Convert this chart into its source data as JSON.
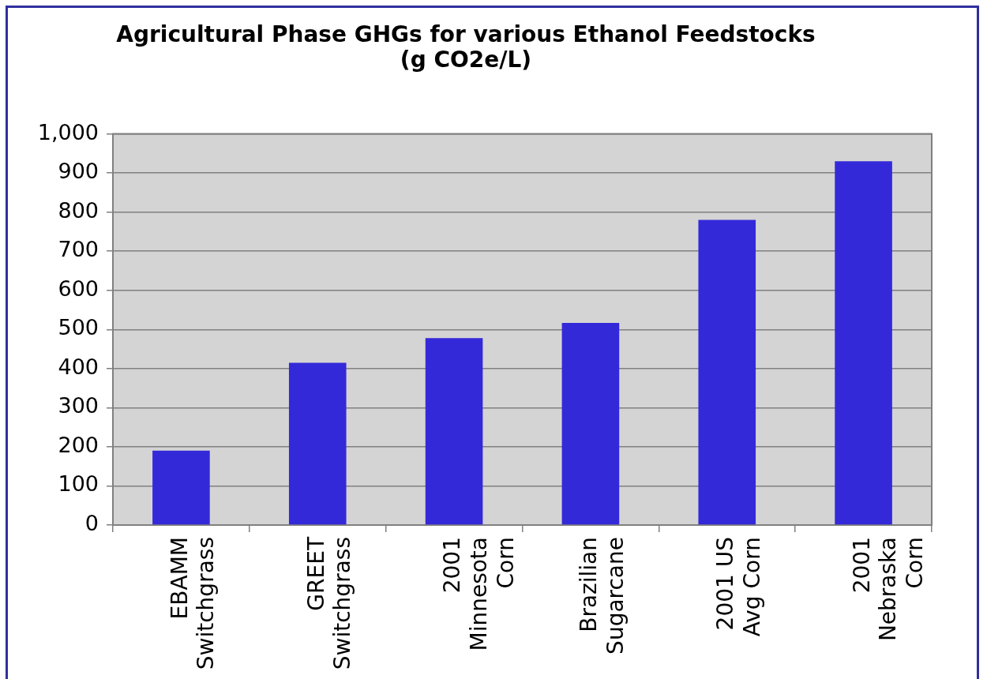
{
  "chart_data": {
    "type": "bar",
    "title": "Agricultural Phase GHGs for various Ethanol Feedstocks",
    "subtitle": "(g CO2e/L)",
    "categories": [
      "EBAMM Switchgrass",
      "GREET Switchgrass",
      "2001 Minnesota Corn",
      "Brazilian Sugarcane",
      "2001 US Avg Corn",
      "2001 Nebraska Corn"
    ],
    "values": [
      190,
      415,
      478,
      517,
      780,
      930
    ],
    "color": "#3429d9",
    "ylim": [
      0,
      1000
    ],
    "yticks": [
      0,
      100,
      200,
      300,
      400,
      500,
      600,
      700,
      800,
      900,
      {
        "value": 1000,
        "label": "1,000"
      }
    ],
    "grid": "y"
  }
}
